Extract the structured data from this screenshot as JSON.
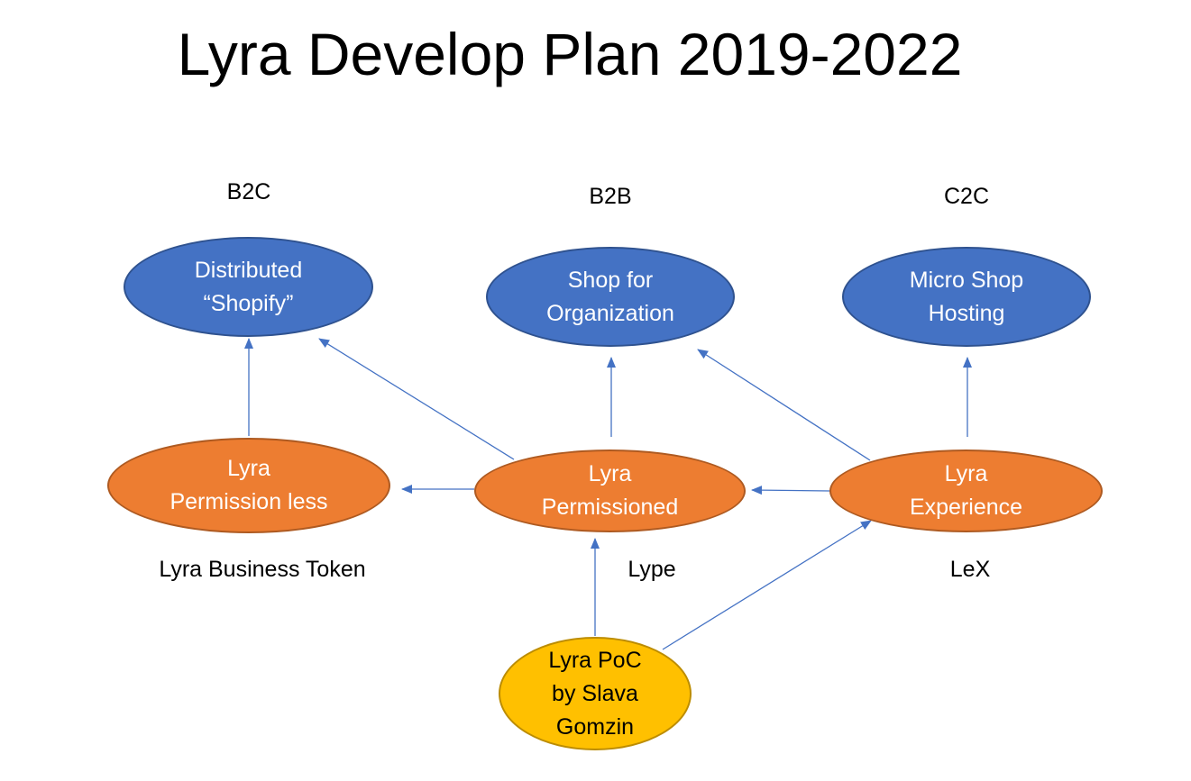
{
  "title": "Lyra Develop Plan 2019-2022",
  "categories": {
    "b2c": "B2C",
    "b2b": "B2B",
    "c2c": "C2C"
  },
  "goals": {
    "shopify": {
      "line1": "Distributed",
      "line2": "“Shopify”"
    },
    "organization": {
      "line1": "Shop for",
      "line2": "Organization"
    },
    "micro": {
      "line1": "Micro Shop",
      "line2": "Hosting"
    }
  },
  "platforms": {
    "permissionless": {
      "line1": "Lyra",
      "line2": "Permission less"
    },
    "permissioned": {
      "line1": "Lyra",
      "line2": "Permissioned"
    },
    "experience": {
      "line1": "Lyra",
      "line2": "Experience"
    }
  },
  "tokens": {
    "business": "Lyra Business Token",
    "lype": "Lype",
    "lex": "LeX"
  },
  "poc": {
    "line1": "Lyra PoC",
    "line2": "by Slava",
    "line3": "Gomzin"
  },
  "colors": {
    "goal_fill": "#4472c4",
    "platform_fill": "#ed7d31",
    "poc_fill": "#ffc000",
    "arrow": "#4472c4"
  }
}
